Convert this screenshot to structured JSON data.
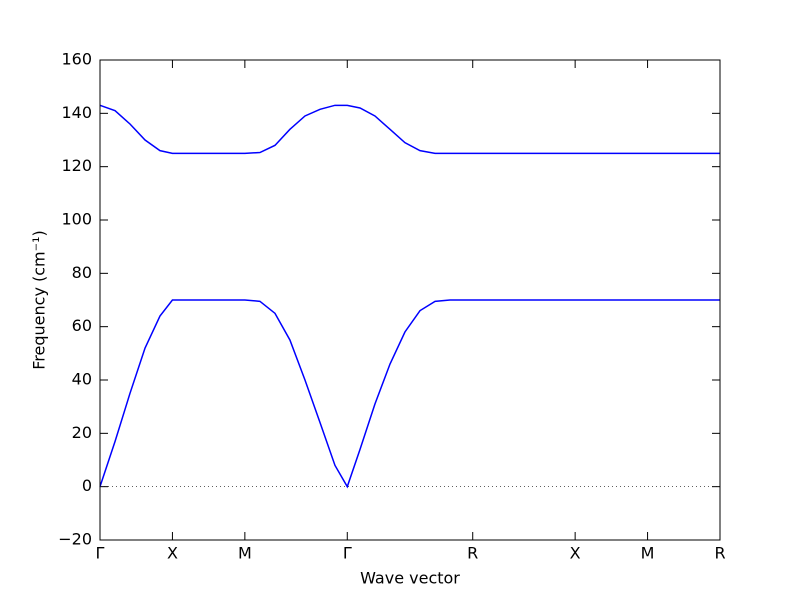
{
  "chart_data": {
    "type": "line",
    "xlabel": "Wave vector",
    "ylabel": "Frequency (cm⁻¹)",
    "x": [
      0,
      0.104,
      0.207,
      0.311,
      0.414,
      0.5,
      1.0,
      1.104,
      1.208,
      1.311,
      1.415,
      1.519,
      1.622,
      1.707,
      1.795,
      1.898,
      2.002,
      2.105,
      2.209,
      2.313,
      2.416,
      2.573,
      3.28,
      3.78,
      4.28
    ],
    "series": [
      {
        "color": "#0000ff",
        "values": [
          0,
          17,
          35,
          52,
          64,
          70,
          70,
          69.5,
          65,
          55,
          40,
          24,
          8,
          0,
          14,
          31,
          46,
          58,
          66,
          69.5,
          70,
          70,
          70,
          70,
          70
        ]
      },
      {
        "color": "#0000ff",
        "values": [
          143,
          141,
          136,
          130,
          126,
          125,
          125,
          125.3,
          128,
          134,
          139,
          141.5,
          143,
          143,
          142,
          139,
          134,
          129,
          126,
          125,
          125,
          125,
          125,
          125,
          125
        ]
      }
    ],
    "xlim": [
      0,
      4.28
    ],
    "xticks": [
      {
        "value": 0,
        "label": "Γ"
      },
      {
        "value": 0.5,
        "label": "X"
      },
      {
        "value": 1.0,
        "label": "M"
      },
      {
        "value": 1.707,
        "label": "Γ"
      },
      {
        "value": 2.573,
        "label": "R"
      },
      {
        "value": 3.28,
        "label": "X"
      },
      {
        "value": 3.78,
        "label": "M"
      },
      {
        "value": 4.28,
        "label": "R"
      }
    ],
    "ylim": [
      -20,
      160
    ],
    "yticks": [
      {
        "value": -20,
        "label": "−20"
      },
      0,
      20,
      40,
      60,
      80,
      100,
      120,
      140,
      160
    ]
  }
}
